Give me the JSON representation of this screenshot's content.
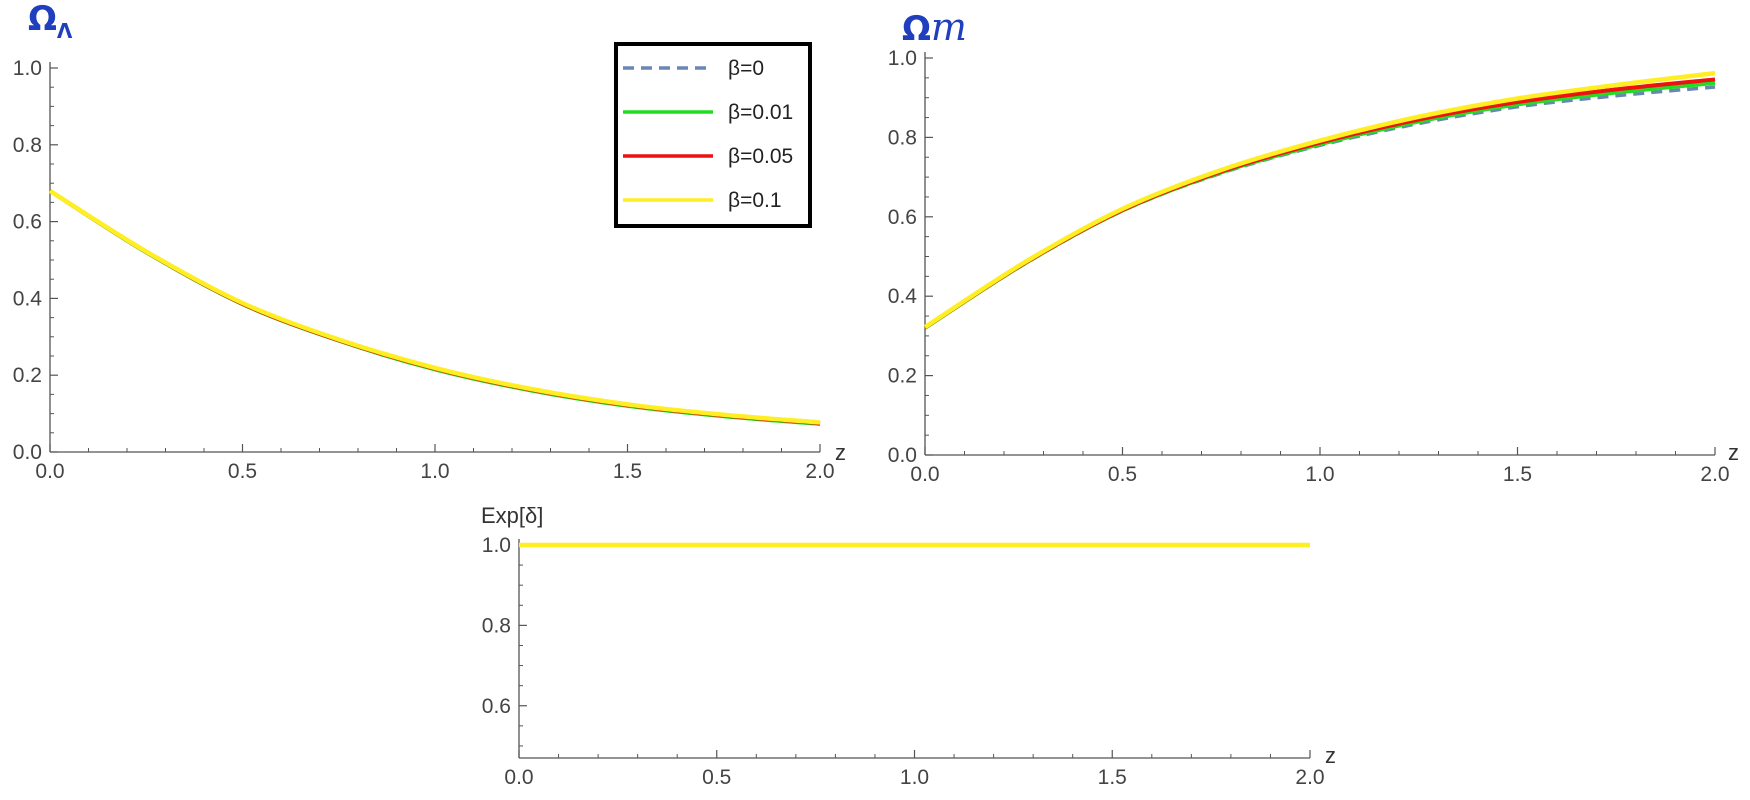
{
  "colors": {
    "title": "#1f3fbf",
    "axis": "#555555",
    "legend_frame": "#000000",
    "beta_0": "#6a86b4",
    "beta_001": "#22dd22",
    "beta_005": "#ee1111",
    "beta_01": "#ffee22"
  },
  "legend": {
    "placement": "top-right of left panel",
    "entries": [
      {
        "label": "β=0",
        "color": "#6a86b4",
        "dashed": true
      },
      {
        "label": "β=0.01",
        "color": "#22dd22",
        "dashed": false
      },
      {
        "label": "β=0.05",
        "color": "#ee1111",
        "dashed": false
      },
      {
        "label": "β=0.1",
        "color": "#ffee22",
        "dashed": false
      }
    ]
  },
  "chart_data": [
    {
      "type": "line",
      "title": "ΩΛ",
      "title_main": "Ω",
      "title_sub": "Λ",
      "xlabel": "z",
      "ylabel": "",
      "xlim": [
        0,
        2
      ],
      "ylim": [
        0,
        1
      ],
      "x_ticks": [
        "0.0",
        "0.5",
        "1.0",
        "1.5",
        "2.0"
      ],
      "y_ticks": [
        "0.0",
        "0.2",
        "0.4",
        "0.6",
        "0.8",
        "1.0"
      ],
      "x": [
        0.0,
        0.25,
        0.5,
        0.75,
        1.0,
        1.25,
        1.5,
        1.75,
        2.0
      ],
      "series": [
        {
          "name": "β=0",
          "values": [
            0.68,
            0.52,
            0.385,
            0.29,
            0.215,
            0.16,
            0.12,
            0.093,
            0.073
          ]
        },
        {
          "name": "β=0.01",
          "values": [
            0.68,
            0.52,
            0.385,
            0.29,
            0.215,
            0.16,
            0.12,
            0.093,
            0.073
          ]
        },
        {
          "name": "β=0.05",
          "values": [
            0.68,
            0.521,
            0.386,
            0.291,
            0.217,
            0.162,
            0.122,
            0.095,
            0.075
          ]
        },
        {
          "name": "β=0.1",
          "values": [
            0.68,
            0.522,
            0.388,
            0.293,
            0.219,
            0.164,
            0.124,
            0.097,
            0.077
          ]
        }
      ]
    },
    {
      "type": "line",
      "title": "Ωm",
      "title_main": "Ω",
      "title_sub": "m",
      "xlabel": "z",
      "ylabel": "",
      "xlim": [
        0,
        2
      ],
      "ylim": [
        0,
        1
      ],
      "x_ticks": [
        "0.0",
        "0.5",
        "1.0",
        "1.5",
        "2.0"
      ],
      "y_ticks": [
        "0.0",
        "0.2",
        "0.4",
        "0.6",
        "0.8",
        "1.0"
      ],
      "x": [
        0.0,
        0.25,
        0.5,
        0.75,
        1.0,
        1.25,
        1.5,
        1.75,
        2.0
      ],
      "series": [
        {
          "name": "β=0",
          "values": [
            0.32,
            0.48,
            0.615,
            0.71,
            0.78,
            0.835,
            0.877,
            0.905,
            0.927
          ]
        },
        {
          "name": "β=0.01",
          "values": [
            0.32,
            0.481,
            0.616,
            0.712,
            0.783,
            0.84,
            0.883,
            0.913,
            0.937
          ]
        },
        {
          "name": "β=0.05",
          "values": [
            0.321,
            0.482,
            0.617,
            0.714,
            0.787,
            0.845,
            0.889,
            0.921,
            0.946
          ]
        },
        {
          "name": "β=0.1",
          "values": [
            0.322,
            0.484,
            0.62,
            0.718,
            0.792,
            0.852,
            0.898,
            0.932,
            0.962
          ]
        }
      ]
    },
    {
      "type": "line",
      "title": "",
      "xlabel": "z",
      "ylabel": "Exp[δ]",
      "xlim": [
        0,
        2
      ],
      "ylim": [
        0.47,
        1.0
      ],
      "x_ticks": [
        "0.0",
        "0.5",
        "1.0",
        "1.5",
        "2.0"
      ],
      "y_ticks": [
        "0.6",
        "0.8",
        "1.0"
      ],
      "x": [
        0.0,
        0.5,
        1.0,
        1.5,
        2.0
      ],
      "series": [
        {
          "name": "β=0",
          "values": [
            1.0,
            1.0,
            1.0,
            1.0,
            1.0
          ]
        },
        {
          "name": "β=0.01",
          "values": [
            1.0,
            1.0,
            1.0,
            1.0,
            1.0
          ]
        },
        {
          "name": "β=0.05",
          "values": [
            1.0,
            1.0,
            1.0,
            1.0,
            1.0
          ]
        },
        {
          "name": "β=0.1",
          "values": [
            1.0,
            1.0,
            1.0,
            1.0,
            1.0
          ]
        }
      ]
    }
  ]
}
